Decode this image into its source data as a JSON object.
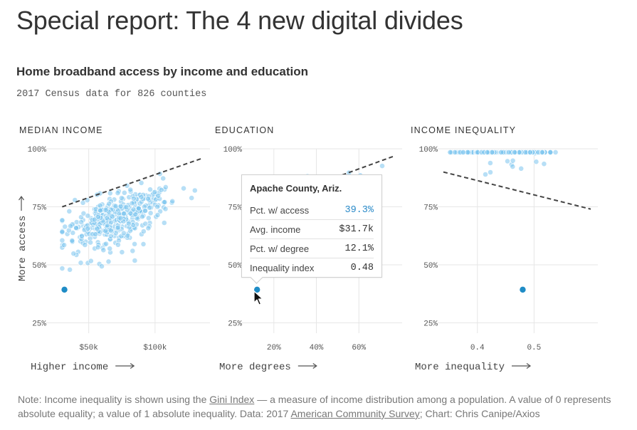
{
  "title": "Special report: The 4 new digital divides",
  "chart_heading": "Home broadband access by income and education",
  "chart_subheading": "2017 Census data for 826 counties",
  "y_axis_label": "More access",
  "colors": {
    "dot": "#7cc4ee",
    "highlight": "#1f8cc6",
    "trend": "#444444",
    "grid": "#e6e6e6"
  },
  "chart_data": [
    {
      "type": "scatter",
      "title": "MEDIAN INCOME",
      "xlabel": "Higher income",
      "ylabel": "More access",
      "x_ticks": [
        {
          "value": 50,
          "label": "$50k"
        },
        {
          "value": 100,
          "label": "$100k"
        }
      ],
      "y_ticks": [
        {
          "value": 25,
          "label": "25%"
        },
        {
          "value": 50,
          "label": "50%"
        },
        {
          "value": 75,
          "label": "75%"
        },
        {
          "value": 100,
          "label": "100%"
        }
      ],
      "xlim": [
        18,
        136
      ],
      "ylim": [
        23,
        100
      ],
      "trend": [
        [
          30,
          75
        ],
        [
          136,
          96
        ]
      ],
      "highlight": {
        "x": 31.7,
        "y": 39.3
      },
      "cloud": {
        "x_center": 72,
        "x_spread": 20,
        "x_range": [
          30,
          130
        ],
        "slope": 0.2,
        "intercept": 71,
        "y_spread": 4.5
      }
    },
    {
      "type": "scatter",
      "title": "EDUCATION",
      "xlabel": "More degrees",
      "ylabel": "More access",
      "x_ticks": [
        {
          "value": 20,
          "label": "20%"
        },
        {
          "value": 40,
          "label": "40%"
        },
        {
          "value": 60,
          "label": "60%"
        }
      ],
      "y_ticks": [
        {
          "value": 25,
          "label": "25%"
        },
        {
          "value": 50,
          "label": "50%"
        },
        {
          "value": 75,
          "label": "75%"
        },
        {
          "value": 100,
          "label": "100%"
        }
      ],
      "xlim": [
        5,
        77
      ],
      "ylim": [
        23,
        100
      ],
      "trend": [
        [
          8,
          74
        ],
        [
          77,
          97
        ]
      ],
      "highlight": {
        "x": 12.1,
        "y": 39.3
      },
      "cloud": {
        "x_center": 40,
        "x_spread": 10,
        "x_range": [
          15,
          72
        ],
        "slope": 0.33,
        "intercept": 76,
        "y_spread": 4.5
      }
    },
    {
      "type": "scatter",
      "title": "INCOME INEQUALITY",
      "xlabel": "More inequality",
      "ylabel": "More access",
      "x_ticks": [
        {
          "value": 0.4,
          "label": "0.4"
        },
        {
          "value": 0.5,
          "label": "0.5"
        }
      ],
      "y_ticks": [
        {
          "value": 25,
          "label": "25%"
        },
        {
          "value": 50,
          "label": "50%"
        },
        {
          "value": 75,
          "label": "75%"
        },
        {
          "value": 100,
          "label": "100%"
        }
      ],
      "xlim": [
        0.33,
        0.6
      ],
      "ylim": [
        23,
        100
      ],
      "trend": [
        [
          0.34,
          90
        ],
        [
          0.6,
          74
        ]
      ],
      "highlight": {
        "x": 0.48,
        "y": 39.3
      },
      "cloud": {
        "x_center": 0.445,
        "x_spread": 0.035,
        "x_range": [
          0.35,
          0.58
        ],
        "slope": -70,
        "intercept": 113,
        "y_spread": 5
      }
    }
  ],
  "tooltip": {
    "title": "Apache County, Ariz.",
    "rows": [
      {
        "label": "Pct. w/ access",
        "value": "39.3%"
      },
      {
        "label": "Avg. income",
        "value": "$31.7k"
      },
      {
        "label": "Pct. w/ degree",
        "value": "12.1%"
      },
      {
        "label": "Inequality index",
        "value": "0.48"
      }
    ]
  },
  "footnote": {
    "part1": "Note: Income inequality is shown using the ",
    "link1": "Gini Index",
    "part2": " — a measure of income distribution among a population. A value of 0 represents absolute equality; a value of 1 absolute inequality. Data: 2017 ",
    "link2": "American Community Survey",
    "part3": "; Chart: Chris Canipe/Axios"
  }
}
